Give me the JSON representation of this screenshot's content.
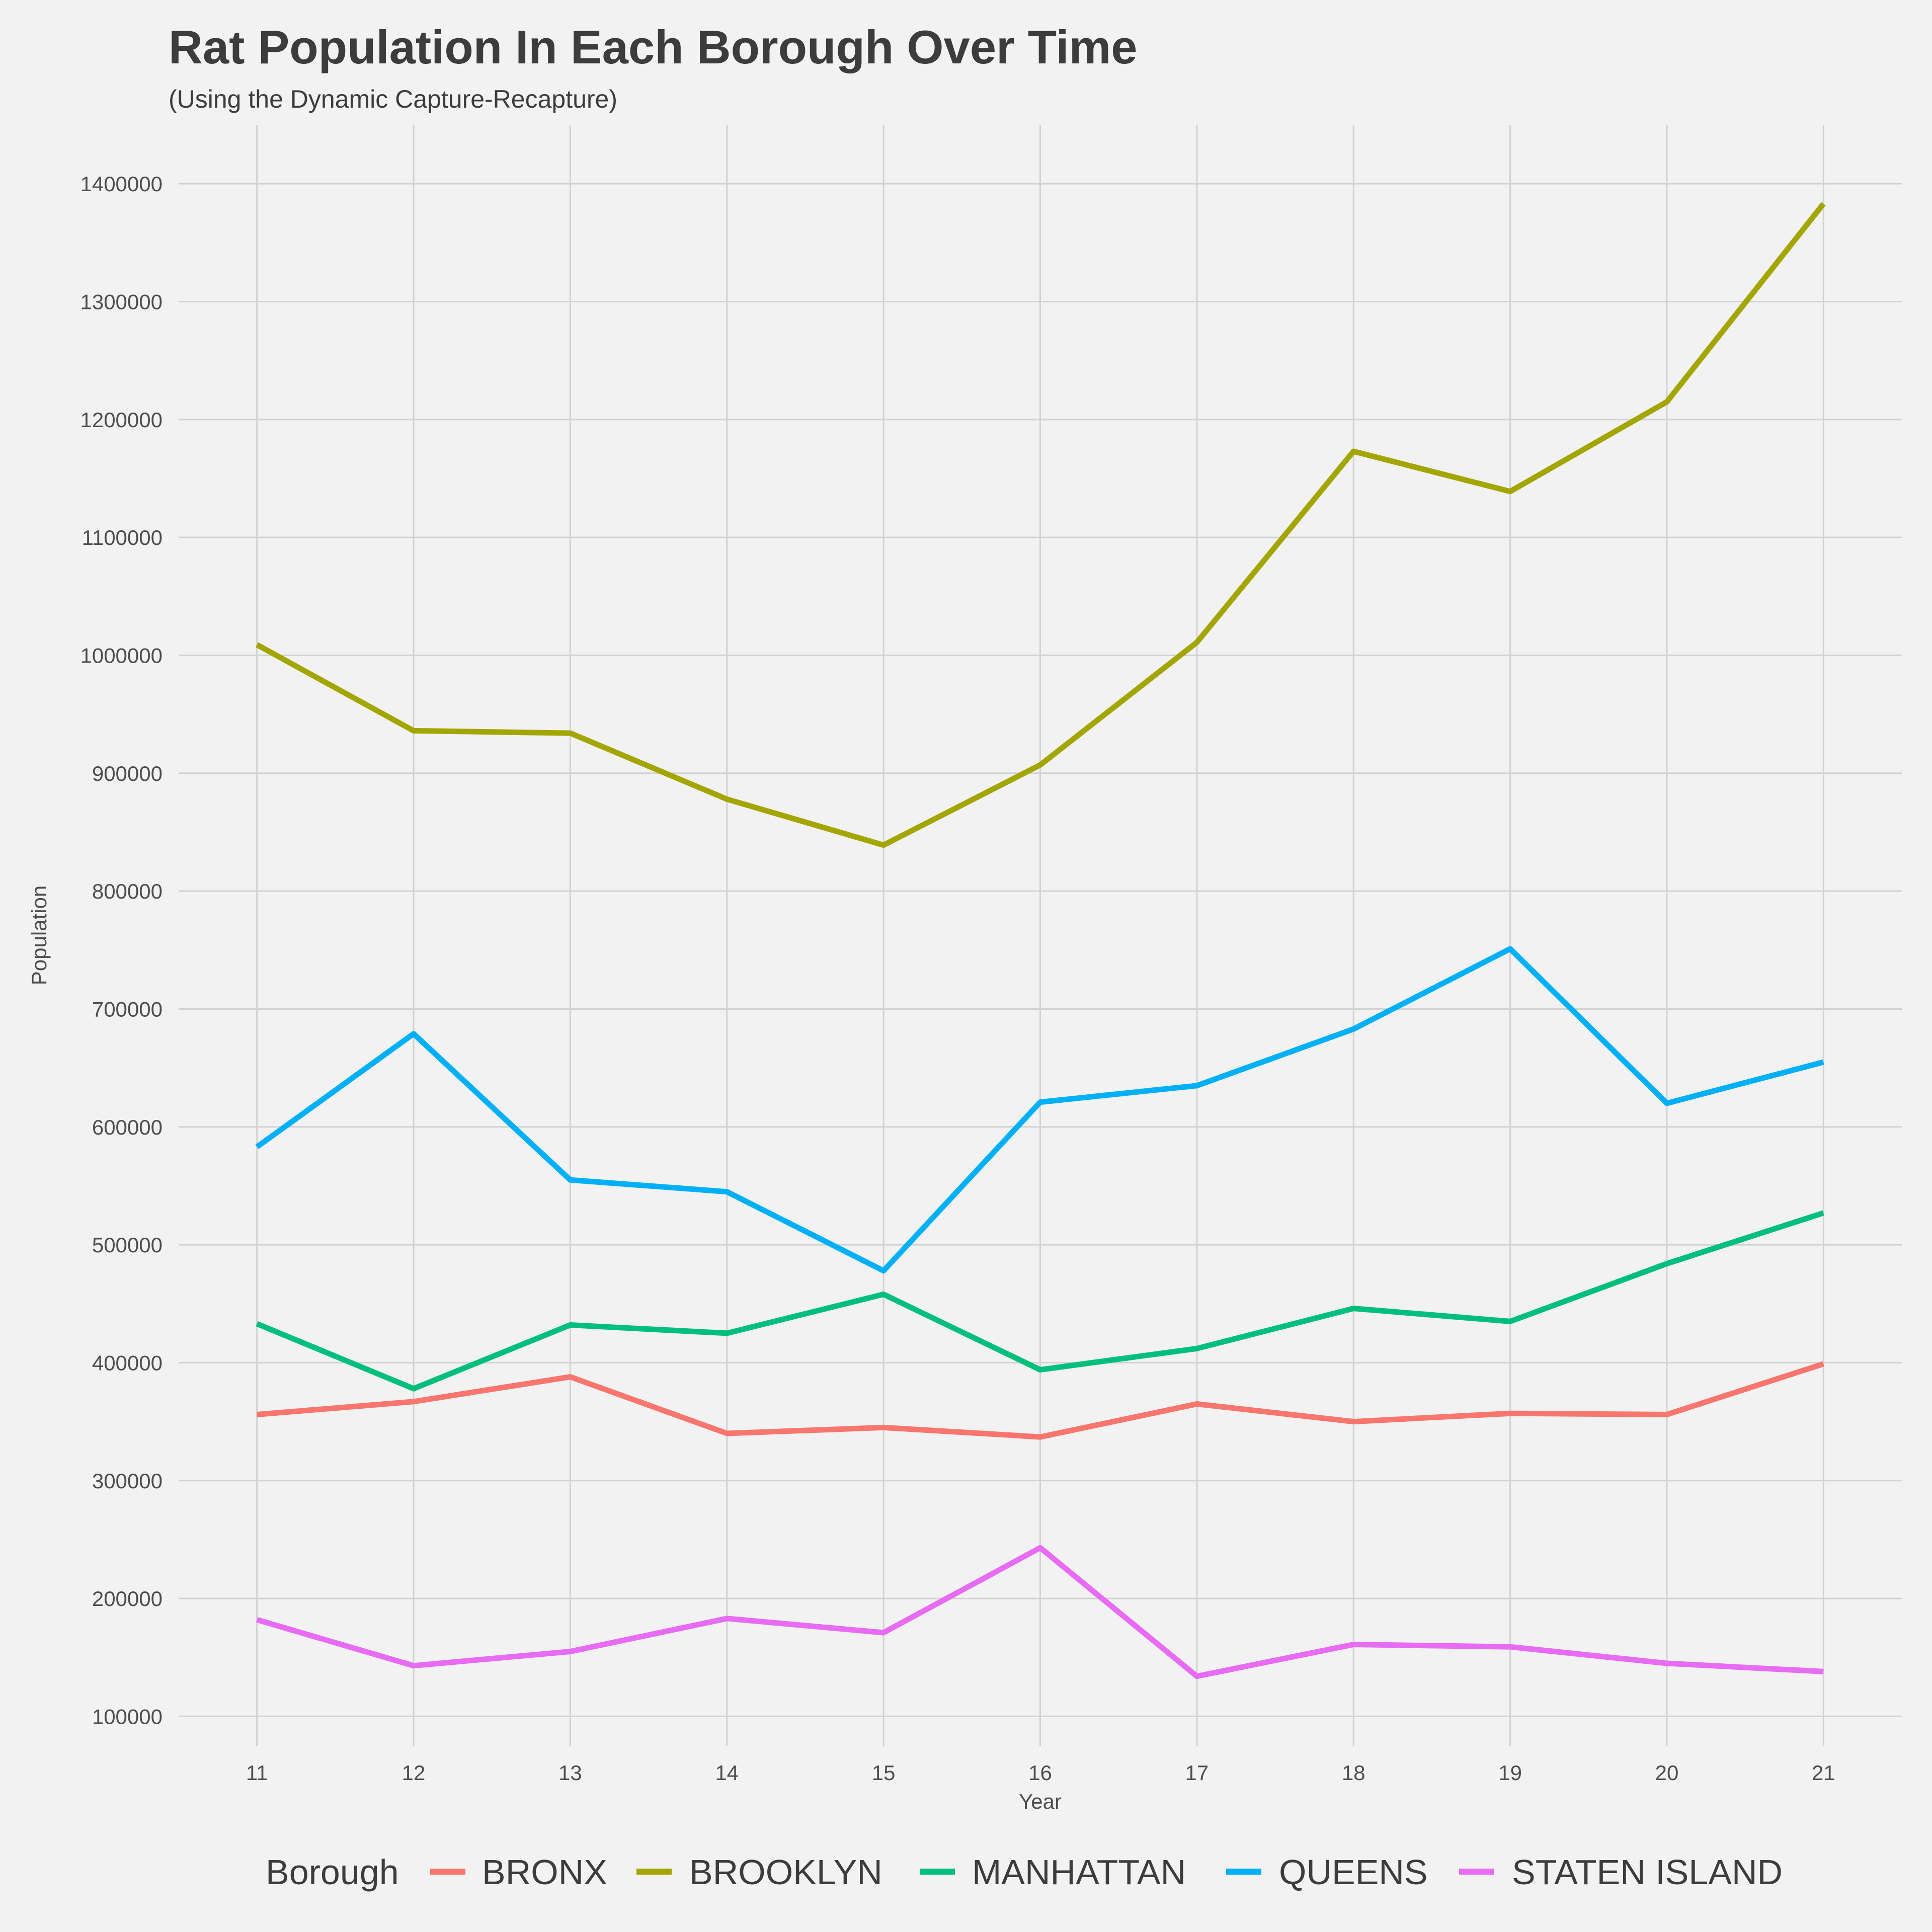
{
  "chart_data": {
    "type": "line",
    "title": "Rat Population In Each Borough Over Time",
    "subtitle": "(Using the Dynamic Capture-Recapture)",
    "xlabel": "Year",
    "ylabel": "Population",
    "x": [
      11,
      12,
      13,
      14,
      15,
      16,
      17,
      18,
      19,
      20,
      21
    ],
    "xlim": [
      10.5,
      21.5
    ],
    "ylim": [
      75000,
      1450000
    ],
    "yticks": [
      100000,
      200000,
      300000,
      400000,
      500000,
      600000,
      700000,
      800000,
      900000,
      1000000,
      1100000,
      1200000,
      1300000,
      1400000
    ],
    "grid": true,
    "legend_position": "bottom",
    "legend_title": "Borough",
    "series": [
      {
        "name": "BRONX",
        "color": "#f8766d",
        "values": [
          356000,
          367000,
          388000,
          340000,
          345000,
          337000,
          365000,
          350000,
          357000,
          356000,
          399000
        ]
      },
      {
        "name": "BROOKLYN",
        "color": "#a3a500",
        "values": [
          1009000,
          936000,
          934000,
          878000,
          839000,
          907000,
          1011000,
          1173000,
          1139000,
          1215000,
          1383000
        ]
      },
      {
        "name": "MANHATTAN",
        "color": "#00bf7d",
        "values": [
          433000,
          378000,
          432000,
          425000,
          458000,
          394000,
          412000,
          446000,
          435000,
          484000,
          527000
        ]
      },
      {
        "name": "QUEENS",
        "color": "#00b0f6",
        "values": [
          583000,
          679000,
          555000,
          545000,
          478000,
          621000,
          635000,
          683000,
          751000,
          620000,
          655000
        ]
      },
      {
        "name": "STATEN ISLAND",
        "color": "#e76bf3",
        "values": [
          182000,
          143000,
          155000,
          183000,
          171000,
          243000,
          134000,
          161000,
          159000,
          145000,
          138000
        ]
      }
    ]
  }
}
